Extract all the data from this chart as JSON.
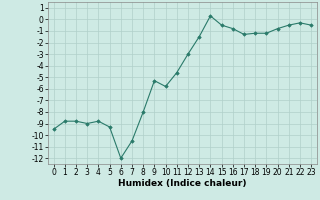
{
  "x": [
    0,
    1,
    2,
    3,
    4,
    5,
    6,
    7,
    8,
    9,
    10,
    11,
    12,
    13,
    14,
    15,
    16,
    17,
    18,
    19,
    20,
    21,
    22,
    23
  ],
  "y": [
    -9.5,
    -8.8,
    -8.8,
    -9.0,
    -8.8,
    -9.3,
    -12.0,
    -10.5,
    -8.0,
    -5.3,
    -5.8,
    -4.6,
    -3.0,
    -1.5,
    0.3,
    -0.5,
    -0.8,
    -1.3,
    -1.2,
    -1.2,
    -0.8,
    -0.5,
    -0.3,
    -0.5
  ],
  "xlabel": "Humidex (Indice chaleur)",
  "ylim": [
    -12.5,
    1.5
  ],
  "xlim": [
    -0.5,
    23.5
  ],
  "ytick_vals": [
    1,
    0,
    -1,
    -2,
    -3,
    -4,
    -5,
    -6,
    -7,
    -8,
    -9,
    -10,
    -11,
    -12
  ],
  "ytick_labels": [
    "1",
    "0",
    "-1",
    "-2",
    "-3",
    "-4",
    "-5",
    "-6",
    "-7",
    "-8",
    "-9",
    "-10",
    "-11",
    "-12"
  ],
  "xticks": [
    0,
    1,
    2,
    3,
    4,
    5,
    6,
    7,
    8,
    9,
    10,
    11,
    12,
    13,
    14,
    15,
    16,
    17,
    18,
    19,
    20,
    21,
    22,
    23
  ],
  "line_color": "#2a7a6a",
  "marker": "D",
  "marker_size": 1.8,
  "bg_color": "#ceeae4",
  "grid_color": "#b0d0ca",
  "tick_fontsize": 5.5,
  "xlabel_fontsize": 6.5
}
